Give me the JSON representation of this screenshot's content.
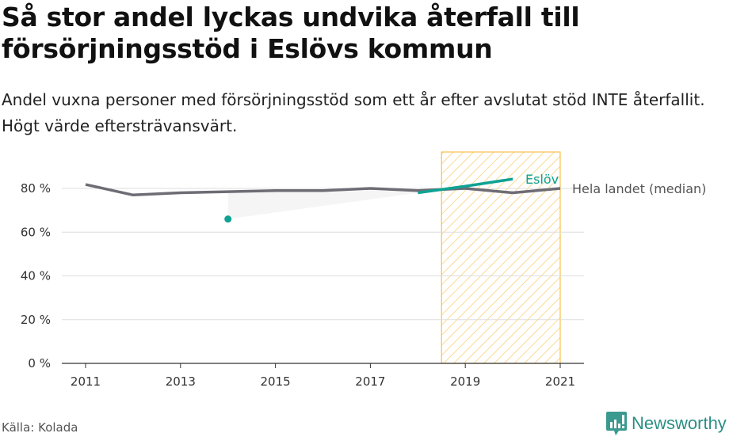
{
  "title": "Så stor andel lyckas undvika återfall till försörjningsstöd i Eslövs kommun",
  "subtitle": "Andel vuxna personer med försörjningsstöd som ett år efter avslutat stöd INTE återfallit. Högt värde eftersträvansvärt.",
  "source": "Källa: Kolada",
  "logo": "Newsworthy",
  "colors": {
    "eslov": "#0fa294",
    "national": "#6e6c74",
    "highlight": "#f6c14b",
    "grid": "#dddddd"
  },
  "chart_data": {
    "type": "line",
    "x": [
      2011,
      2012,
      2013,
      2014,
      2015,
      2016,
      2017,
      2018,
      2019,
      2020,
      2021
    ],
    "xticks": [
      "2011",
      "2013",
      "2015",
      "2017",
      "2019",
      "2021"
    ],
    "yticks": [
      "0 %",
      "20 %",
      "40 %",
      "60 %",
      "80 %"
    ],
    "ylim": [
      0,
      96
    ],
    "highlight_range": [
      2018.5,
      2021
    ],
    "series": [
      {
        "name": "Hela landet (median)",
        "values": [
          81.8,
          77,
          78,
          78.5,
          79,
          79,
          80,
          79,
          80,
          78,
          80
        ]
      },
      {
        "name": "Eslöv",
        "values": [
          null,
          null,
          null,
          66,
          null,
          null,
          null,
          78,
          81,
          84.3,
          null
        ]
      }
    ]
  }
}
